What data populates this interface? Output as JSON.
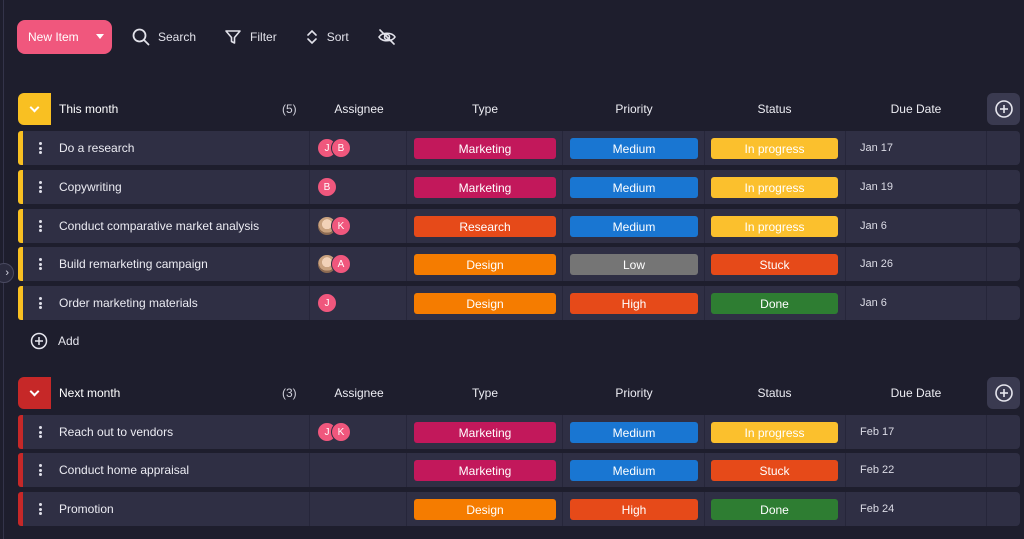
{
  "toolbar": {
    "new_item_label": "New Item",
    "search_label": "Search",
    "filter_label": "Filter",
    "sort_label": "Sort"
  },
  "columns": {
    "assignee": "Assignee",
    "type": "Type",
    "priority": "Priority",
    "status": "Status",
    "due_date": "Due Date"
  },
  "colors": {
    "marketing": "#c2185b",
    "research": "#e64a19",
    "design": "#f57c00",
    "medium": "#1976d2",
    "low": "#757575",
    "high": "#e64a19",
    "in_progress": "#fbc02d",
    "stuck": "#e64a19",
    "done": "#2e7d32",
    "this_month": "#f9c022",
    "next_month": "#c62828"
  },
  "groups": [
    {
      "title": "This month",
      "count": "(5)",
      "rows": [
        {
          "name": "Do a research",
          "assignees": [
            "J",
            "B"
          ],
          "type": "Marketing",
          "priority": "Medium",
          "status": "In progress",
          "due": "Jan 17"
        },
        {
          "name": "Copywriting",
          "assignees": [
            "B"
          ],
          "type": "Marketing",
          "priority": "Medium",
          "status": "In progress",
          "due": "Jan 19"
        },
        {
          "name": "Conduct comparative market analysis",
          "assignees": [
            "photo",
            "K"
          ],
          "type": "Research",
          "priority": "Medium",
          "status": "In progress",
          "due": "Jan 6"
        },
        {
          "name": "Build remarketing campaign",
          "assignees": [
            "photo",
            "A"
          ],
          "type": "Design",
          "priority": "Low",
          "status": "Stuck",
          "due": "Jan 26"
        },
        {
          "name": "Order marketing materials",
          "assignees": [
            "J"
          ],
          "type": "Design",
          "priority": "High",
          "status": "Done",
          "due": "Jan 6"
        }
      ],
      "add_label": "Add"
    },
    {
      "title": "Next month",
      "count": "(3)",
      "rows": [
        {
          "name": "Reach out to vendors",
          "assignees": [
            "J",
            "K"
          ],
          "type": "Marketing",
          "priority": "Medium",
          "status": "In progress",
          "due": "Feb 17"
        },
        {
          "name": "Conduct home appraisal",
          "assignees": [],
          "type": "Marketing",
          "priority": "Medium",
          "status": "Stuck",
          "due": "Feb 22"
        },
        {
          "name": "Promotion",
          "assignees": [],
          "type": "Design",
          "priority": "High",
          "status": "Done",
          "due": "Feb 24"
        }
      ]
    }
  ]
}
